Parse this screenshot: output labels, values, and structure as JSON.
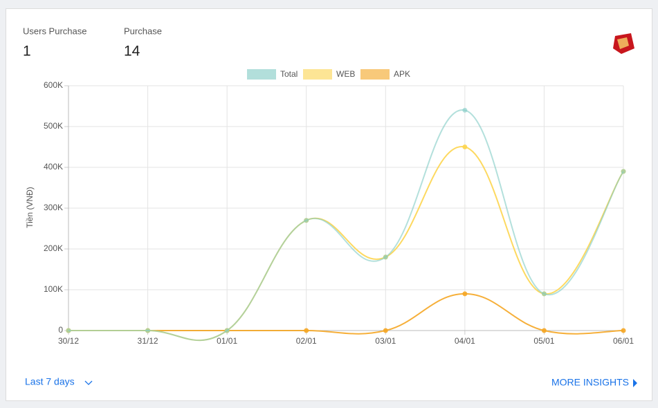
{
  "stats": [
    {
      "label": "Users Purchase",
      "value": 1
    },
    {
      "label": "Purchase",
      "value": 14
    }
  ],
  "chart_data": {
    "type": "line",
    "y_label": "Tiền (VNĐ)",
    "categories": [
      "30/12",
      "31/12",
      "01/01",
      "02/01",
      "03/01",
      "04/01",
      "05/01",
      "06/01"
    ],
    "series": [
      {
        "name": "Total",
        "color": "#80cbc4",
        "values": [
          0,
          0,
          0,
          270000,
          180000,
          540000,
          90000,
          390000
        ]
      },
      {
        "name": "WEB",
        "color": "#fdd54f",
        "values": [
          0,
          0,
          0,
          270000,
          180000,
          450000,
          90000,
          390000
        ]
      },
      {
        "name": "APK",
        "color": "#f5a623",
        "values": [
          0,
          0,
          0,
          0,
          0,
          90000,
          0,
          0
        ]
      }
    ],
    "ylim": [
      0,
      600000
    ],
    "yticks": [
      0,
      {
        "value": 100000,
        "label": "100K"
      },
      {
        "value": 200000,
        "label": "200K"
      },
      {
        "value": 300000,
        "label": "300K"
      },
      {
        "value": 400000,
        "label": "400K"
      },
      {
        "value": 500000,
        "label": "500K"
      },
      {
        "value": 600000,
        "label": "600K"
      }
    ],
    "grid": true,
    "legend": "top"
  },
  "footer": {
    "range": "Last 7 days",
    "link": "MORE INSIGHTS"
  }
}
